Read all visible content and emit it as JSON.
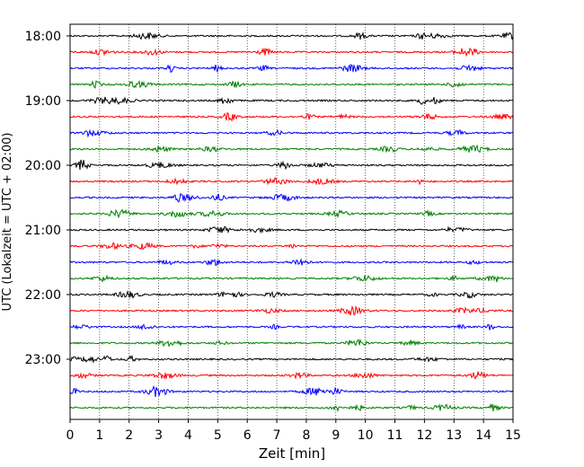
{
  "chart_data": {
    "type": "line",
    "title": "",
    "xlabel": "Zeit  [min]",
    "ylabel": "UTC (Lokalzeit = UTC + 02:00)",
    "xlim": [
      0,
      15
    ],
    "x_ticks": [
      "0",
      "1",
      "2",
      "3",
      "4",
      "5",
      "6",
      "7",
      "8",
      "9",
      "10",
      "11",
      "12",
      "13",
      "14",
      "15"
    ],
    "y_ticks": [
      "18:00",
      "19:00",
      "20:00",
      "21:00",
      "22:00",
      "23:00"
    ],
    "grid": "vertical dotted",
    "trace_interval_minutes": 15,
    "traces_start": "18:00",
    "traces_end": "23:45",
    "trace_colors": [
      "#000000",
      "#ff0000",
      "#0000ff",
      "#008000"
    ],
    "traces": [
      {
        "start": "18:00",
        "color": "#000000"
      },
      {
        "start": "18:15",
        "color": "#ff0000"
      },
      {
        "start": "18:30",
        "color": "#0000ff"
      },
      {
        "start": "18:45",
        "color": "#008000"
      },
      {
        "start": "19:00",
        "color": "#000000"
      },
      {
        "start": "19:15",
        "color": "#ff0000"
      },
      {
        "start": "19:30",
        "color": "#0000ff"
      },
      {
        "start": "19:45",
        "color": "#008000"
      },
      {
        "start": "20:00",
        "color": "#000000"
      },
      {
        "start": "20:15",
        "color": "#ff0000"
      },
      {
        "start": "20:30",
        "color": "#0000ff"
      },
      {
        "start": "20:45",
        "color": "#008000"
      },
      {
        "start": "21:00",
        "color": "#000000"
      },
      {
        "start": "21:15",
        "color": "#ff0000"
      },
      {
        "start": "21:30",
        "color": "#0000ff"
      },
      {
        "start": "21:45",
        "color": "#008000"
      },
      {
        "start": "22:00",
        "color": "#000000"
      },
      {
        "start": "22:15",
        "color": "#ff0000"
      },
      {
        "start": "22:30",
        "color": "#0000ff"
      },
      {
        "start": "22:45",
        "color": "#008000"
      },
      {
        "start": "23:00",
        "color": "#000000"
      },
      {
        "start": "23:15",
        "color": "#ff0000"
      },
      {
        "start": "23:30",
        "color": "#0000ff"
      },
      {
        "start": "23:45",
        "color": "#008000"
      }
    ]
  }
}
